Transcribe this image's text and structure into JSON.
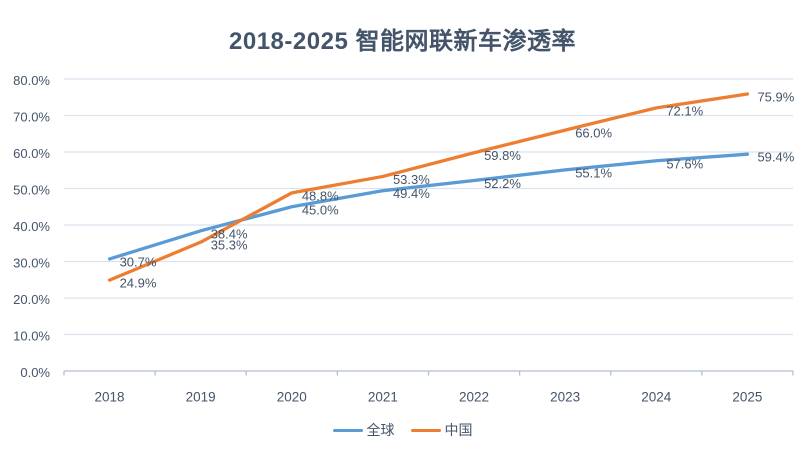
{
  "chart_data": {
    "type": "line",
    "title": "2018-2025 智能网联新车渗透率",
    "categories": [
      "2018",
      "2019",
      "2020",
      "2021",
      "2022",
      "2023",
      "2024",
      "2025"
    ],
    "series": [
      {
        "name": "全球",
        "color": "#5B9BD5",
        "values": [
          30.7,
          38.4,
          45.0,
          49.4,
          52.2,
          55.1,
          57.6,
          59.4
        ]
      },
      {
        "name": "中国",
        "color": "#ED7D31",
        "values": [
          24.9,
          35.3,
          48.8,
          53.3,
          59.8,
          66.0,
          72.1,
          75.9
        ]
      }
    ],
    "y_ticks": [
      {
        "value": 0,
        "label": "0.0%"
      },
      {
        "value": 10,
        "label": "10.0%"
      },
      {
        "value": 20,
        "label": "20.0%"
      },
      {
        "value": 30,
        "label": "30.0%"
      },
      {
        "value": 40,
        "label": "40.0%"
      },
      {
        "value": 50,
        "label": "50.0%"
      },
      {
        "value": 60,
        "label": "60.0%"
      },
      {
        "value": 70,
        "label": "70.0%"
      },
      {
        "value": 80,
        "label": "80.0%"
      }
    ],
    "ylim": [
      0,
      80
    ],
    "xlabel": "",
    "ylabel": "",
    "grid": true,
    "data_labels": true,
    "legend_position": "bottom"
  },
  "style": {
    "text_color": "#44546A",
    "gridline_color": "#DCE3EE",
    "axis_color": "#B5BFCF",
    "background": "#FFFFFF"
  }
}
